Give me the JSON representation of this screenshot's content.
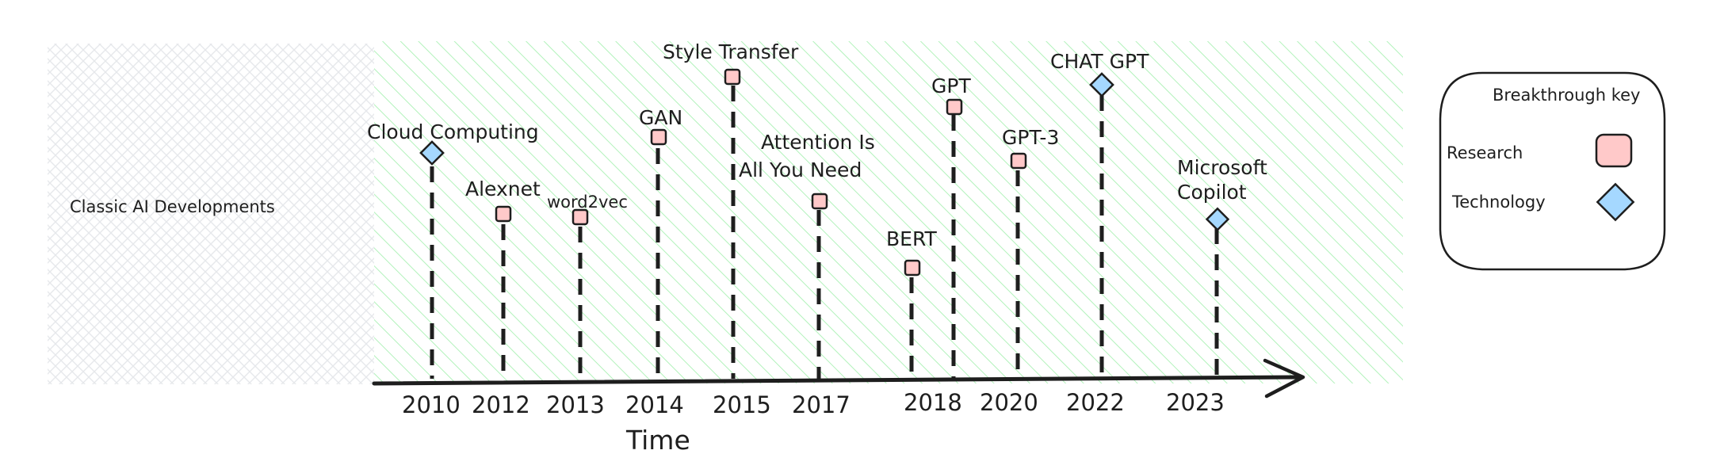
{
  "diagram": {
    "left_region_label": "Classic AI Developments",
    "axis_title": "Time",
    "legend": {
      "title": "Breakthrough key",
      "items": [
        {
          "label": "Research",
          "shape": "square",
          "color": "#ffc9c9"
        },
        {
          "label": "Technology",
          "shape": "diamond",
          "color": "#a5d8ff"
        }
      ]
    },
    "years": [
      "2010",
      "2012",
      "2013",
      "2014",
      "2015",
      "2017",
      "2018",
      "2018",
      "2020",
      "2022",
      "2023"
    ],
    "events": [
      {
        "name": "Cloud Computing",
        "year": "2010",
        "type": "Technology"
      },
      {
        "name": "Alexnet",
        "year": "2012",
        "type": "Research"
      },
      {
        "name": "word2vec",
        "year": "2013",
        "type": "Research"
      },
      {
        "name": "GAN",
        "year": "2014",
        "type": "Research"
      },
      {
        "name": "Style Transfer",
        "year": "2015",
        "type": "Research"
      },
      {
        "name": "Attention Is All You Need",
        "lines": [
          "Attention Is",
          "All You Need"
        ],
        "year": "2017",
        "type": "Research"
      },
      {
        "name": "BERT",
        "year": "2018",
        "type": "Research"
      },
      {
        "name": "GPT",
        "year": "2018",
        "type": "Research"
      },
      {
        "name": "GPT-3",
        "year": "2020",
        "type": "Research"
      },
      {
        "name": "CHAT GPT",
        "year": "2022",
        "type": "Technology"
      },
      {
        "name": "Microsoft Copilot",
        "lines": [
          "Microsoft",
          "Copilot"
        ],
        "year": "2023",
        "type": "Technology"
      }
    ],
    "colors": {
      "research": "#ffc9c9",
      "technology": "#a5d8ff",
      "hatch": "#b2f2bb",
      "crosshatch": "#e9ecef",
      "stroke": "#1e1e1e"
    }
  }
}
